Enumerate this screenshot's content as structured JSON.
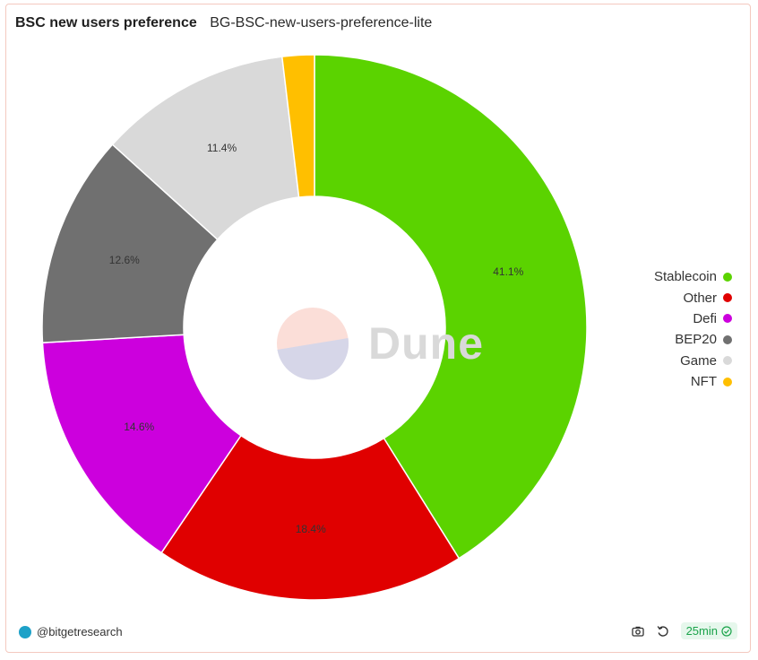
{
  "header": {
    "title": "BSC new users preference",
    "subtitle": "BG-BSC-new-users-preference-lite"
  },
  "chart_data": {
    "type": "pie",
    "donut": true,
    "slices": [
      {
        "name": "Stablecoin",
        "value": 41.1,
        "label": "41.1%",
        "color": "#5bd300"
      },
      {
        "name": "Other",
        "value": 18.4,
        "label": "18.4%",
        "color": "#e00000"
      },
      {
        "name": "Defi",
        "value": 14.6,
        "label": "14.6%",
        "color": "#cc00dd"
      },
      {
        "name": "BEP20",
        "value": 12.6,
        "label": "12.6%",
        "color": "#707070"
      },
      {
        "name": "Game",
        "value": 11.4,
        "label": "11.4%",
        "color": "#d9d9d9"
      },
      {
        "name": "NFT",
        "value": 1.9,
        "label": "",
        "color": "#ffbf00"
      }
    ],
    "legend_position": "right"
  },
  "watermark": {
    "text": "Dune"
  },
  "footer": {
    "author": "@bitgetresearch",
    "refresh_label": "25min",
    "icons": [
      "avatar-icon",
      "camera-icon",
      "refresh-icon",
      "check-circle-icon"
    ]
  }
}
